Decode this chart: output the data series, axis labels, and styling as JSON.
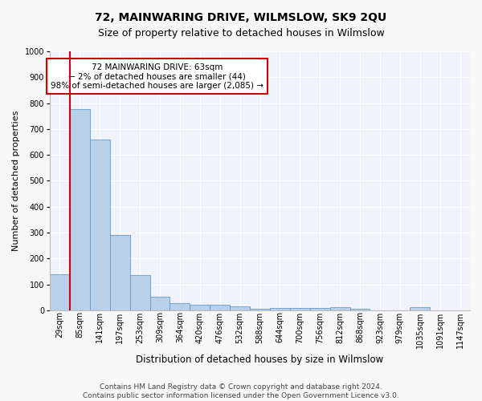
{
  "title": "72, MAINWARING DRIVE, WILMSLOW, SK9 2QU",
  "subtitle": "Size of property relative to detached houses in Wilmslow",
  "xlabel": "Distribution of detached houses by size in Wilmslow",
  "ylabel": "Number of detached properties",
  "bin_labels": [
    "29sqm",
    "85sqm",
    "141sqm",
    "197sqm",
    "253sqm",
    "309sqm",
    "364sqm",
    "420sqm",
    "476sqm",
    "532sqm",
    "588sqm",
    "644sqm",
    "700sqm",
    "756sqm",
    "812sqm",
    "868sqm",
    "923sqm",
    "979sqm",
    "1035sqm",
    "1091sqm",
    "1147sqm"
  ],
  "bar_values": [
    140,
    778,
    660,
    292,
    137,
    52,
    28,
    20,
    20,
    14,
    5,
    10,
    10,
    10,
    12,
    5,
    0,
    0,
    12,
    0,
    0
  ],
  "bar_color": "#b8d0e8",
  "bar_edge_color": "#6699cc",
  "ylim": [
    0,
    1000
  ],
  "yticks": [
    0,
    100,
    200,
    300,
    400,
    500,
    600,
    700,
    800,
    900,
    1000
  ],
  "annotation_text": "72 MAINWARING DRIVE: 63sqm\n← 2% of detached houses are smaller (44)\n98% of semi-detached houses are larger (2,085) →",
  "annotation_box_facecolor": "#ffffff",
  "annotation_box_edgecolor": "#cc0000",
  "property_line_color": "#cc0000",
  "footer_line1": "Contains HM Land Registry data © Crown copyright and database right 2024.",
  "footer_line2": "Contains public sector information licensed under the Open Government Licence v3.0.",
  "fig_facecolor": "#f8f8f8",
  "plot_facecolor": "#f0f4fa",
  "grid_color": "#ffffff",
  "title_fontsize": 10,
  "subtitle_fontsize": 9,
  "xlabel_fontsize": 8.5,
  "ylabel_fontsize": 8,
  "tick_fontsize": 7,
  "footer_fontsize": 6.5,
  "annotation_fontsize": 7.5
}
